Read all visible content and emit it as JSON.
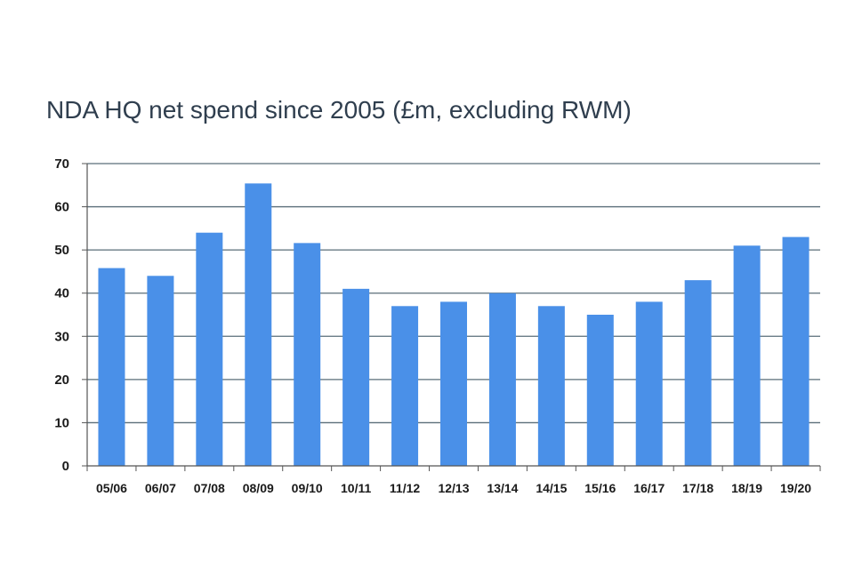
{
  "chart_data": {
    "type": "bar",
    "title": "NDA HQ net spend since 2005 (£m, excluding RWM)",
    "xlabel": "",
    "ylabel": "",
    "categories": [
      "05/06",
      "06/07",
      "07/08",
      "08/09",
      "09/10",
      "10/11",
      "11/12",
      "12/13",
      "13/14",
      "14/15",
      "15/16",
      "16/17",
      "17/18",
      "18/19",
      "19/20"
    ],
    "values": [
      45.8,
      44,
      54,
      65.4,
      51.6,
      41,
      37,
      38,
      40,
      37,
      35,
      38,
      43,
      51,
      53
    ],
    "ylim": [
      0,
      70
    ],
    "yticks": [
      0,
      10,
      20,
      30,
      40,
      50,
      60,
      70
    ],
    "grid": true,
    "legend": "none",
    "colors": {
      "bar": "#4a90e8",
      "grid": "#5a6e79",
      "axis": "#555555"
    }
  }
}
